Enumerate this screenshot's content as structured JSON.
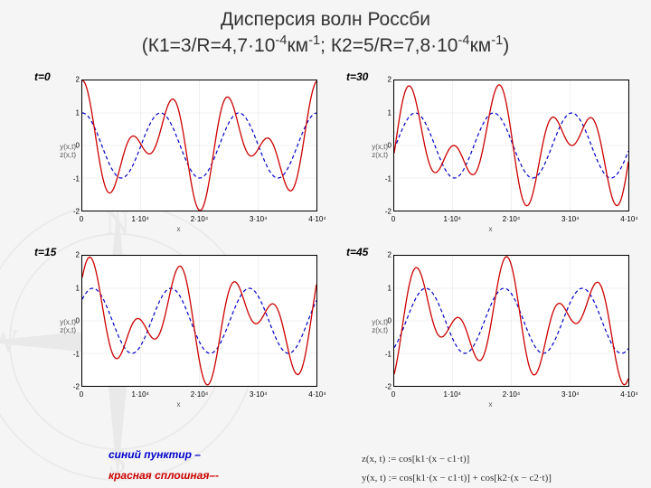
{
  "title_line1": "Дисперсия волн Россби",
  "title_line2_prefix": "(К1=3/R=4,7·10",
  "title_line2_exp1": "-4",
  "title_line2_mid1": "км",
  "title_line2_exp2": "-1",
  "title_line2_mid2": "; К2=5/R=7,8·10",
  "title_line2_exp3": "-4",
  "title_line2_mid3": "км",
  "title_line2_exp4": "-1",
  "title_line2_suffix": ")",
  "panels": [
    {
      "label": "t=0",
      "t": 0
    },
    {
      "label": "t=30",
      "t": 30
    },
    {
      "label": "t=15",
      "t": 15
    },
    {
      "label": "t=45",
      "t": 45
    }
  ],
  "axes": {
    "xlim": [
      0,
      40000
    ],
    "ylim": [
      -2,
      2
    ],
    "yticks": [
      -2,
      -1,
      0,
      1,
      2
    ],
    "xticks": [
      {
        "v": 0,
        "label": "0"
      },
      {
        "v": 10000,
        "label": "1·10⁴"
      },
      {
        "v": 20000,
        "label": "2·10⁴"
      },
      {
        "v": 30000,
        "label": "3·10⁴"
      },
      {
        "v": 40000,
        "label": "4·10⁴"
      }
    ],
    "xlabel": "x",
    "ylabel_line1": "y(x,t)",
    "ylabel_line2": "z(x,t)",
    "grid_color": "#cccccc",
    "tick_fontsize": 8,
    "background": "#ffffff",
    "border_color": "#000000"
  },
  "wave": {
    "k1": 0.00047,
    "k2": 0.00078,
    "c1": 120,
    "c2": 72,
    "n_points": 240
  },
  "series": {
    "z": {
      "color": "#0000cc",
      "dash": "4 3",
      "width": 1.2,
      "label": "синий пунктир –"
    },
    "y": {
      "color": "#cc0000",
      "dash": "",
      "width": 1.3,
      "label": "красная сплошная–-"
    }
  },
  "formulas": {
    "z": "z(x, t) := cos[k1·(x − c1·t)]",
    "y": "y(x, t) := cos[k1·(x − c1·t)] + cos[k2·(x − c2·t)]"
  },
  "compass": {
    "letters": [
      "N",
      "E",
      "S",
      "W"
    ],
    "color": "#888888"
  }
}
